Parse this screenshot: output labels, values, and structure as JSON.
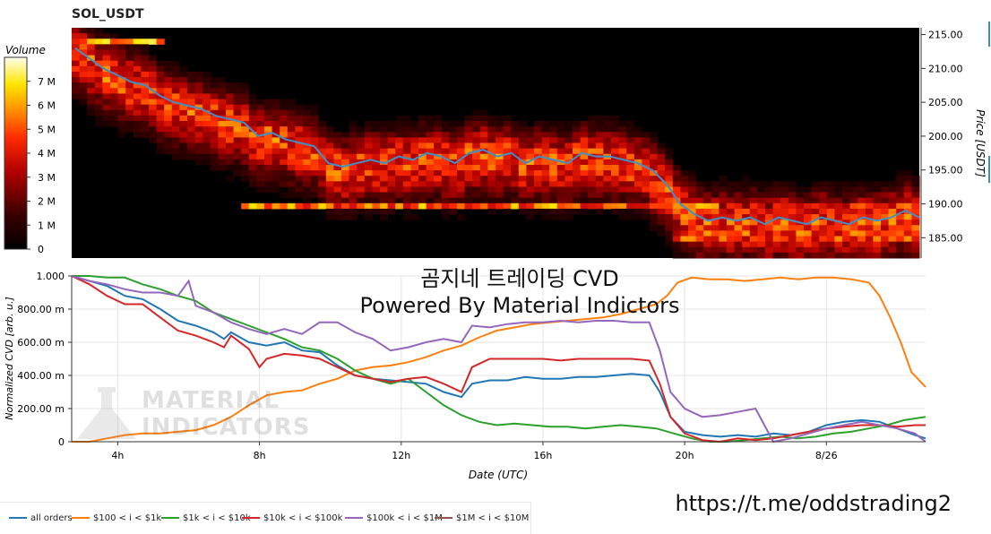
{
  "page": {
    "title": "SOL_USDT",
    "overlay_line1": "곰지네 트레이딩 CVD",
    "overlay_line2": "Powered By Material Indictors",
    "link": "https://t.me/oddstrading2",
    "watermark_line1": "MATERIAL",
    "watermark_line2": "INDICATORS"
  },
  "chart_data": [
    {
      "type": "heatmap",
      "title": "SOL_USDT",
      "ylabel": "Price [USDT]",
      "ylim": [
        182,
        216
      ],
      "yticks": [
        "215.00",
        "210.00",
        "205.00",
        "200.00",
        "195.00",
        "190.00",
        "185.00"
      ],
      "yticks_values": [
        215,
        210,
        205,
        200,
        195,
        190,
        185
      ],
      "colorbar": {
        "label": "Volume",
        "ticks": [
          "7 M",
          "6 M",
          "5 M",
          "4 M",
          "3 M",
          "2 M",
          "1 M",
          "0"
        ],
        "ticks_values": [
          7,
          6,
          5,
          4,
          3,
          2,
          1,
          0
        ],
        "range": [
          0,
          8
        ]
      },
      "price_series": {
        "x": [
          2.8,
          3.2,
          3.6,
          4.0,
          4.4,
          4.8,
          5.2,
          5.6,
          6.0,
          6.4,
          6.8,
          7.2,
          7.6,
          8.0,
          8.4,
          8.8,
          9.2,
          9.6,
          10.0,
          10.4,
          10.8,
          11.2,
          11.6,
          12.0,
          12.4,
          12.8,
          13.2,
          13.6,
          14.0,
          14.4,
          14.8,
          15.2,
          15.6,
          16.0,
          16.4,
          16.8,
          17.2,
          17.6,
          18.0,
          18.4,
          18.8,
          19.2,
          19.6,
          20.0,
          20.4,
          20.8,
          21.2,
          21.6,
          22.0,
          22.4,
          22.8,
          23.2,
          23.6,
          24.0,
          24.4,
          24.8,
          25.2,
          25.6,
          26.0,
          26.4,
          26.8
        ],
        "values": [
          213,
          211.5,
          210,
          209,
          208,
          207.5,
          206,
          205,
          204.5,
          204,
          203,
          202.5,
          202,
          200,
          200.5,
          199.5,
          199,
          198.5,
          196,
          195.5,
          196,
          196.5,
          196,
          197,
          196.5,
          197.5,
          197,
          196,
          197.5,
          198,
          197,
          197.5,
          196,
          197,
          196.5,
          196,
          197.5,
          197,
          197,
          196.5,
          196,
          195,
          193,
          190,
          188.5,
          187.5,
          188,
          187.5,
          188,
          187,
          188,
          187.5,
          187,
          188,
          187.5,
          187,
          188,
          187.5,
          188,
          189,
          188
        ]
      }
    },
    {
      "type": "line",
      "xlabel": "Date (UTC)",
      "ylabel": "Normalized CVD [arb. u.]",
      "ylim": [
        0,
        1
      ],
      "xlim": [
        2.7,
        26.8
      ],
      "xticks": [
        "4h",
        "8h",
        "12h",
        "16h",
        "20h",
        "8/26"
      ],
      "xticks_values": [
        4,
        8,
        12,
        16,
        20,
        24
      ],
      "yticks": [
        "0",
        "200.00 m",
        "400.00 m",
        "600.00 m",
        "800.00 m",
        "1.000"
      ],
      "yticks_values": [
        0,
        0.2,
        0.4,
        0.6,
        0.8,
        1.0
      ],
      "grid": true,
      "legend_position": "bottom-left",
      "series": [
        {
          "name": "all orders",
          "color": "#1f77b4",
          "x": [
            2.7,
            3.2,
            3.7,
            4.2,
            4.7,
            5.2,
            5.7,
            6.2,
            6.7,
            7.0,
            7.2,
            7.7,
            8.2,
            8.7,
            9.2,
            9.7,
            10.2,
            10.7,
            11.2,
            11.7,
            12.2,
            12.7,
            13.2,
            13.7,
            14.0,
            14.5,
            15.0,
            15.5,
            16.0,
            16.5,
            17.0,
            17.5,
            18.0,
            18.5,
            19.0,
            19.3,
            19.6,
            20.0,
            20.5,
            21.0,
            21.5,
            22.0,
            22.5,
            23.0,
            23.5,
            24.0,
            24.5,
            25.0,
            25.5,
            26.0,
            26.5,
            26.8
          ],
          "values": [
            1.0,
            0.97,
            0.94,
            0.88,
            0.86,
            0.8,
            0.73,
            0.7,
            0.66,
            0.62,
            0.66,
            0.6,
            0.58,
            0.6,
            0.55,
            0.54,
            0.46,
            0.4,
            0.38,
            0.37,
            0.36,
            0.35,
            0.3,
            0.27,
            0.35,
            0.37,
            0.37,
            0.39,
            0.38,
            0.38,
            0.39,
            0.39,
            0.4,
            0.41,
            0.4,
            0.3,
            0.15,
            0.06,
            0.04,
            0.03,
            0.04,
            0.03,
            0.05,
            0.04,
            0.06,
            0.1,
            0.12,
            0.13,
            0.12,
            0.08,
            0.04,
            0.02
          ]
        },
        {
          "name": "$100 < i < $1k",
          "color": "#ff7f0e",
          "x": [
            2.7,
            3.2,
            3.7,
            4.2,
            4.7,
            5.2,
            5.7,
            6.2,
            6.7,
            7.2,
            7.7,
            8.2,
            8.7,
            9.2,
            9.7,
            10.2,
            10.7,
            11.2,
            11.7,
            12.2,
            12.7,
            13.2,
            13.7,
            14.2,
            14.7,
            15.2,
            15.7,
            16.2,
            16.7,
            17.2,
            17.7,
            18.2,
            18.7,
            19.2,
            19.5,
            19.8,
            20.2,
            20.7,
            21.2,
            21.7,
            22.2,
            22.7,
            23.2,
            23.7,
            24.2,
            24.7,
            25.2,
            25.5,
            25.8,
            26.1,
            26.4,
            26.8
          ],
          "values": [
            0.0,
            0.0,
            0.02,
            0.04,
            0.05,
            0.05,
            0.06,
            0.07,
            0.1,
            0.15,
            0.22,
            0.28,
            0.3,
            0.31,
            0.35,
            0.38,
            0.43,
            0.45,
            0.46,
            0.48,
            0.51,
            0.55,
            0.58,
            0.63,
            0.67,
            0.69,
            0.71,
            0.72,
            0.73,
            0.74,
            0.75,
            0.77,
            0.8,
            0.83,
            0.88,
            0.96,
            0.99,
            0.98,
            0.98,
            0.97,
            0.98,
            0.99,
            0.98,
            0.99,
            0.99,
            0.98,
            0.96,
            0.88,
            0.75,
            0.6,
            0.42,
            0.33
          ]
        },
        {
          "name": "$1k < i < $10k",
          "color": "#2ca02c",
          "x": [
            2.7,
            3.2,
            3.7,
            4.2,
            4.7,
            5.2,
            5.7,
            6.2,
            6.7,
            7.2,
            7.7,
            8.2,
            8.7,
            9.2,
            9.7,
            10.2,
            10.7,
            11.2,
            11.7,
            12.2,
            12.7,
            13.2,
            13.7,
            14.2,
            14.7,
            15.2,
            15.7,
            16.2,
            16.7,
            17.2,
            17.7,
            18.2,
            18.7,
            19.2,
            19.7,
            20.2,
            20.7,
            21.2,
            21.7,
            22.2,
            22.7,
            23.2,
            23.7,
            24.2,
            24.7,
            25.2,
            25.7,
            26.2,
            26.8
          ],
          "values": [
            1.0,
            1.0,
            0.99,
            0.99,
            0.95,
            0.92,
            0.88,
            0.85,
            0.78,
            0.74,
            0.7,
            0.66,
            0.62,
            0.57,
            0.55,
            0.5,
            0.43,
            0.38,
            0.35,
            0.38,
            0.3,
            0.22,
            0.16,
            0.12,
            0.1,
            0.11,
            0.1,
            0.09,
            0.09,
            0.08,
            0.09,
            0.1,
            0.09,
            0.08,
            0.05,
            0.02,
            0.0,
            0.0,
            0.01,
            0.02,
            0.03,
            0.02,
            0.03,
            0.05,
            0.06,
            0.08,
            0.1,
            0.13,
            0.15
          ]
        },
        {
          "name": "$10k < i < $100k",
          "color": "#d62728",
          "x": [
            2.7,
            3.2,
            3.7,
            4.2,
            4.7,
            5.2,
            5.7,
            6.2,
            6.7,
            7.0,
            7.2,
            7.7,
            8.0,
            8.2,
            8.7,
            9.2,
            9.7,
            10.2,
            10.7,
            11.2,
            11.7,
            12.2,
            12.7,
            13.2,
            13.7,
            14.0,
            14.5,
            15.0,
            15.5,
            16.0,
            16.5,
            17.0,
            17.5,
            18.0,
            18.5,
            19.0,
            19.3,
            19.6,
            20.0,
            20.5,
            21.0,
            21.5,
            22.0,
            22.5,
            23.0,
            23.5,
            24.0,
            24.5,
            25.0,
            25.5,
            26.0,
            26.5,
            26.8
          ],
          "values": [
            1.0,
            0.95,
            0.88,
            0.83,
            0.83,
            0.75,
            0.67,
            0.64,
            0.6,
            0.57,
            0.64,
            0.56,
            0.45,
            0.5,
            0.53,
            0.52,
            0.5,
            0.45,
            0.4,
            0.38,
            0.36,
            0.38,
            0.39,
            0.35,
            0.3,
            0.45,
            0.5,
            0.5,
            0.5,
            0.5,
            0.49,
            0.5,
            0.5,
            0.5,
            0.5,
            0.49,
            0.35,
            0.15,
            0.05,
            0.01,
            0.0,
            0.02,
            0.01,
            0.02,
            0.04,
            0.06,
            0.08,
            0.09,
            0.1,
            0.1,
            0.09,
            0.1,
            0.1
          ]
        },
        {
          "name": "$100k < i < $1M",
          "color": "#9467bd",
          "x": [
            2.7,
            3.2,
            3.7,
            4.2,
            4.7,
            5.2,
            5.7,
            6.0,
            6.2,
            6.7,
            7.2,
            7.7,
            8.2,
            8.7,
            9.2,
            9.7,
            10.2,
            10.7,
            11.2,
            11.7,
            12.2,
            12.7,
            13.2,
            13.7,
            14.0,
            14.5,
            15.0,
            15.5,
            16.0,
            16.5,
            17.0,
            17.5,
            18.0,
            18.5,
            19.0,
            19.3,
            19.6,
            20.0,
            20.5,
            21.0,
            21.5,
            22.0,
            22.5,
            23.0,
            23.5,
            24.0,
            24.5,
            25.0,
            25.5,
            26.0,
            26.5,
            26.8
          ],
          "values": [
            1.0,
            0.97,
            0.95,
            0.92,
            0.9,
            0.9,
            0.88,
            0.97,
            0.82,
            0.78,
            0.72,
            0.68,
            0.65,
            0.68,
            0.65,
            0.72,
            0.72,
            0.66,
            0.62,
            0.55,
            0.57,
            0.6,
            0.62,
            0.6,
            0.7,
            0.69,
            0.71,
            0.72,
            0.72,
            0.73,
            0.72,
            0.73,
            0.73,
            0.72,
            0.72,
            0.55,
            0.3,
            0.2,
            0.15,
            0.16,
            0.18,
            0.2,
            0.0,
            0.02,
            0.05,
            0.08,
            0.1,
            0.12,
            0.1,
            0.08,
            0.05,
            0.0
          ]
        },
        {
          "name": "$1M < i < $10M",
          "color": "#8c564b",
          "x": [],
          "values": []
        }
      ]
    }
  ]
}
